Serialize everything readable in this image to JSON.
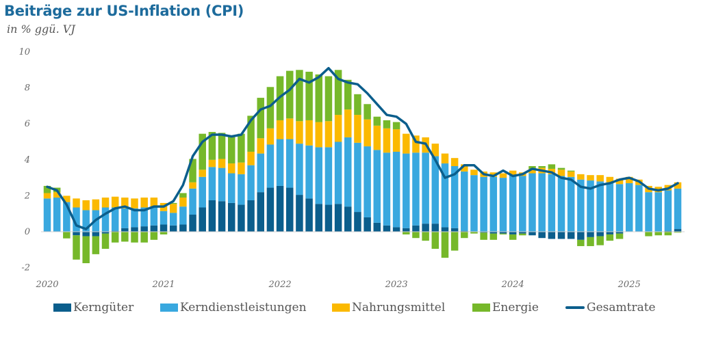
{
  "title": "Beiträge zur US-Inflation (CPI)",
  "subtitle": "in % ggü. VJ",
  "colors": {
    "title": "#1d6b9c",
    "kerngueter": "#0b5e8c",
    "kerndienstleistungen": "#39a8df",
    "nahrungsmittel": "#fbb900",
    "energie": "#76b82a",
    "gesamtrate": "#0b5e8c"
  },
  "chart_data": {
    "type": "bar",
    "stacked": true,
    "title": "Beiträge zur US-Inflation (CPI)",
    "ylabel": "in % ggü. VJ",
    "xlabel": "",
    "ylim": [
      -2,
      10
    ],
    "yticks": [
      -2,
      0,
      2,
      4,
      6,
      8,
      10
    ],
    "ytick_labels": [
      "-2",
      "0",
      "2",
      "4",
      "6",
      "8",
      "10"
    ],
    "xtick_labels": [
      "2020",
      "2021",
      "2022",
      "2023",
      "2024",
      "2025"
    ],
    "legend_position": "bottom",
    "grid": false,
    "x_start": "2020-01",
    "x_frequency": "monthly",
    "series": [
      {
        "name": "Kerngüter",
        "kind": "bar",
        "values": [
          0.0,
          0.0,
          -0.02,
          -0.2,
          -0.25,
          -0.25,
          -0.1,
          0.05,
          0.2,
          0.25,
          0.3,
          0.35,
          0.4,
          0.35,
          0.4,
          0.95,
          1.35,
          1.75,
          1.7,
          1.6,
          1.5,
          1.75,
          2.2,
          2.45,
          2.55,
          2.45,
          2.05,
          1.85,
          1.55,
          1.5,
          1.55,
          1.4,
          1.1,
          0.8,
          0.5,
          0.35,
          0.25,
          0.2,
          0.35,
          0.45,
          0.45,
          0.25,
          0.2,
          0.05,
          0.0,
          -0.05,
          -0.1,
          -0.1,
          -0.15,
          -0.1,
          -0.2,
          -0.35,
          -0.4,
          -0.4,
          -0.4,
          -0.45,
          -0.3,
          -0.25,
          -0.15,
          -0.1,
          0.0,
          0.0,
          0.0,
          0.0,
          0.05,
          0.15
        ]
      },
      {
        "name": "Kerndienstleistungen",
        "kind": "bar",
        "values": [
          1.85,
          1.9,
          1.65,
          1.35,
          1.2,
          1.2,
          1.35,
          1.3,
          1.1,
          1.05,
          1.05,
          1.05,
          0.75,
          0.7,
          1.0,
          1.45,
          1.7,
          1.85,
          1.85,
          1.65,
          1.7,
          1.95,
          2.15,
          2.4,
          2.6,
          2.7,
          2.85,
          2.95,
          3.15,
          3.2,
          3.45,
          3.85,
          3.85,
          3.95,
          4.05,
          4.05,
          4.2,
          4.15,
          4.05,
          3.95,
          3.75,
          3.55,
          3.45,
          3.3,
          3.15,
          3.05,
          3.05,
          3.0,
          3.15,
          3.1,
          3.25,
          3.25,
          3.2,
          3.1,
          3.05,
          2.9,
          2.85,
          2.8,
          2.75,
          2.65,
          2.7,
          2.6,
          2.2,
          2.2,
          2.25,
          2.25
        ]
      },
      {
        "name": "Nahrungsmittel",
        "kind": "bar",
        "values": [
          0.3,
          0.3,
          0.35,
          0.5,
          0.55,
          0.6,
          0.55,
          0.6,
          0.6,
          0.55,
          0.55,
          0.5,
          0.45,
          0.5,
          0.5,
          0.35,
          0.4,
          0.4,
          0.5,
          0.55,
          0.65,
          0.75,
          0.85,
          0.9,
          1.05,
          1.15,
          1.25,
          1.4,
          1.4,
          1.45,
          1.5,
          1.55,
          1.55,
          1.5,
          1.35,
          1.35,
          1.25,
          1.1,
          0.95,
          0.85,
          0.7,
          0.55,
          0.45,
          0.4,
          0.3,
          0.3,
          0.25,
          0.25,
          0.25,
          0.2,
          0.25,
          0.3,
          0.3,
          0.35,
          0.3,
          0.3,
          0.3,
          0.35,
          0.3,
          0.3,
          0.35,
          0.3,
          0.35,
          0.3,
          0.3,
          0.35
        ]
      },
      {
        "name": "Energie",
        "kind": "bar",
        "values": [
          0.4,
          0.25,
          -0.35,
          -1.35,
          -1.5,
          -1.0,
          -0.85,
          -0.6,
          -0.55,
          -0.6,
          -0.6,
          -0.45,
          -0.15,
          0.05,
          0.25,
          1.3,
          2.0,
          1.55,
          1.45,
          1.55,
          1.6,
          2.0,
          2.25,
          2.3,
          2.45,
          2.65,
          2.85,
          2.7,
          2.65,
          2.5,
          2.5,
          1.65,
          1.15,
          0.85,
          0.5,
          0.45,
          0.4,
          -0.15,
          -0.35,
          -0.5,
          -0.95,
          -1.45,
          -1.05,
          -0.35,
          -0.1,
          -0.4,
          -0.35,
          -0.05,
          -0.3,
          -0.1,
          0.15,
          0.1,
          0.25,
          0.1,
          0.05,
          -0.35,
          -0.5,
          -0.5,
          -0.35,
          -0.3,
          0.0,
          0.0,
          -0.25,
          -0.2,
          -0.2,
          -0.05
        ]
      },
      {
        "name": "Gesamtrate",
        "kind": "line",
        "values": [
          2.5,
          2.3,
          1.5,
          0.35,
          0.15,
          0.65,
          1.0,
          1.3,
          1.4,
          1.2,
          1.2,
          1.4,
          1.4,
          1.7,
          2.6,
          4.2,
          5.0,
          5.4,
          5.4,
          5.3,
          5.4,
          6.2,
          6.8,
          7.0,
          7.5,
          7.9,
          8.5,
          8.3,
          8.6,
          9.1,
          8.5,
          8.3,
          8.2,
          7.7,
          7.1,
          6.5,
          6.4,
          6.0,
          5.0,
          4.9,
          4.0,
          3.0,
          3.2,
          3.7,
          3.7,
          3.2,
          3.1,
          3.4,
          3.1,
          3.2,
          3.5,
          3.4,
          3.3,
          3.0,
          2.9,
          2.5,
          2.4,
          2.6,
          2.7,
          2.9,
          3.0,
          2.8,
          2.4,
          2.3,
          2.4,
          2.7
        ]
      }
    ]
  },
  "legend": [
    {
      "label": "Kerngüter",
      "type": "box"
    },
    {
      "label": "Kerndienstleistungen",
      "type": "box"
    },
    {
      "label": "Nahrungsmittel",
      "type": "box"
    },
    {
      "label": "Energie",
      "type": "box"
    },
    {
      "label": "Gesamtrate",
      "type": "line"
    }
  ]
}
